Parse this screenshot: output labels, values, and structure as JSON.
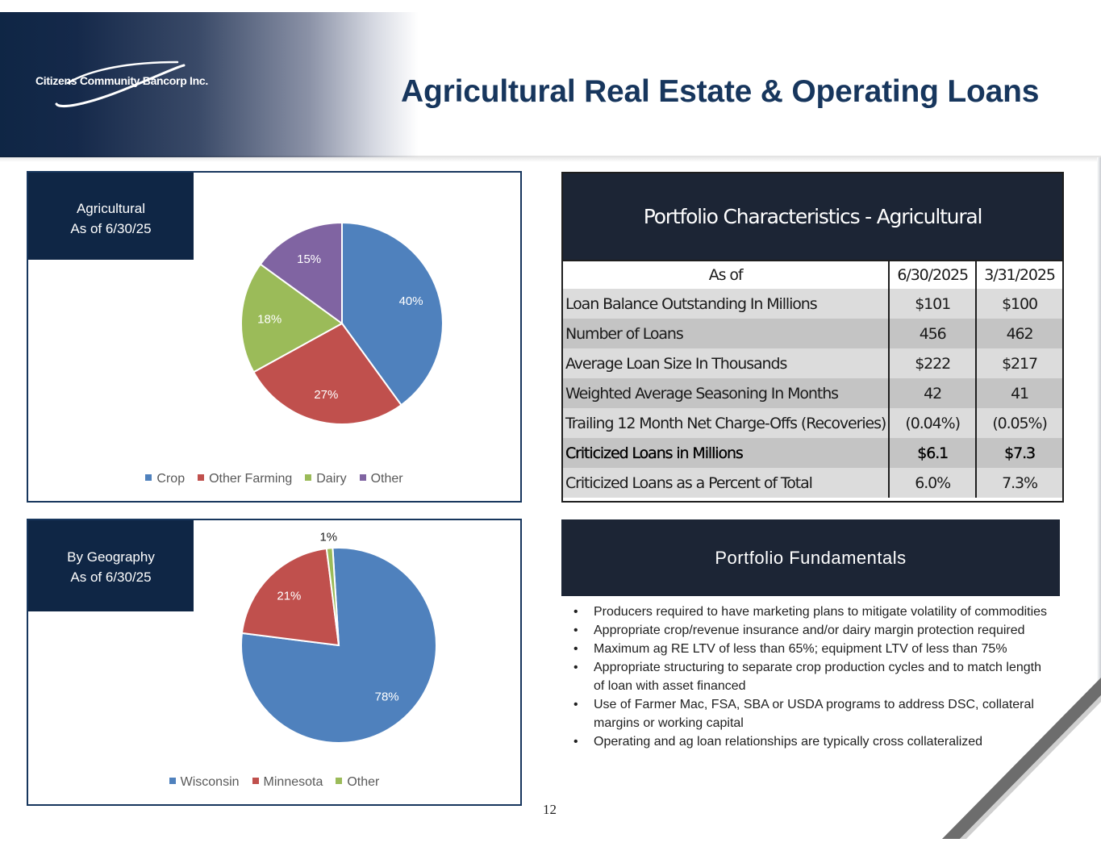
{
  "company": {
    "logo_text": "Citizens Community Bancorp Inc."
  },
  "page_title": "Agricultural Real Estate & Operating Loans",
  "page_number": "12",
  "chart_data": [
    {
      "type": "pie",
      "label_line1": "Agricultural",
      "label_line2": "As of 6/30/25",
      "categories": [
        "Crop",
        "Other Farming",
        "Dairy",
        "Other"
      ],
      "values": [
        40,
        27,
        18,
        15
      ],
      "value_labels": [
        "40%",
        "27%",
        "18%",
        "15%"
      ],
      "colors": [
        "#4f81bd",
        "#c0504d",
        "#9bbb59",
        "#8064a2"
      ],
      "legend_position": "bottom"
    },
    {
      "type": "pie",
      "label_line1": "By Geography",
      "label_line2": "As of 6/30/25",
      "categories": [
        "Wisconsin",
        "Minnesota",
        "Other"
      ],
      "values": [
        78,
        21,
        1
      ],
      "value_labels": [
        "78%",
        "21%",
        "1%"
      ],
      "colors": [
        "#4f81bd",
        "#c0504d",
        "#9bbb59"
      ],
      "legend_position": "bottom"
    }
  ],
  "portfolio_table": {
    "title": "Portfolio Characteristics - Agricultural",
    "header": [
      "As of",
      "6/30/2025",
      "3/31/2025"
    ],
    "rows": [
      {
        "label": "Loan Balance Outstanding In Millions",
        "v1": "$101",
        "v2": "$100"
      },
      {
        "label": "Number of Loans",
        "v1": "456",
        "v2": "462"
      },
      {
        "label": "Average Loan Size In Thousands",
        "v1": "$222",
        "v2": "$217"
      },
      {
        "label": "Weighted Average Seasoning  In Months",
        "v1": "42",
        "v2": "41"
      },
      {
        "label": "Trailing 12 Month Net Charge-Offs (Recoveries)",
        "v1": "(0.04%)",
        "v2": "(0.05%)"
      },
      {
        "label": "Criticized Loans in Millions",
        "v1": "$6.1",
        "v2": "$7.3"
      },
      {
        "label": "Criticized Loans as a Percent of Total",
        "v1": "6.0%",
        "v2": "7.3%"
      }
    ]
  },
  "fundamentals": {
    "title": "Portfolio Fundamentals",
    "bullet": "•",
    "items": [
      "Producers required to have marketing plans to mitigate volatility of commodities",
      "Appropriate crop/revenue insurance and/or dairy margin protection required",
      "Maximum ag RE LTV of less than 65%; equipment LTV of less than 75%",
      "Appropriate structuring to separate crop production cycles and to match length of loan with asset financed",
      "Use of Farmer Mac, FSA, SBA or USDA programs to address DSC, collateral margins or working capital",
      "Operating and ag loan relationships are typically cross collateralized"
    ]
  }
}
